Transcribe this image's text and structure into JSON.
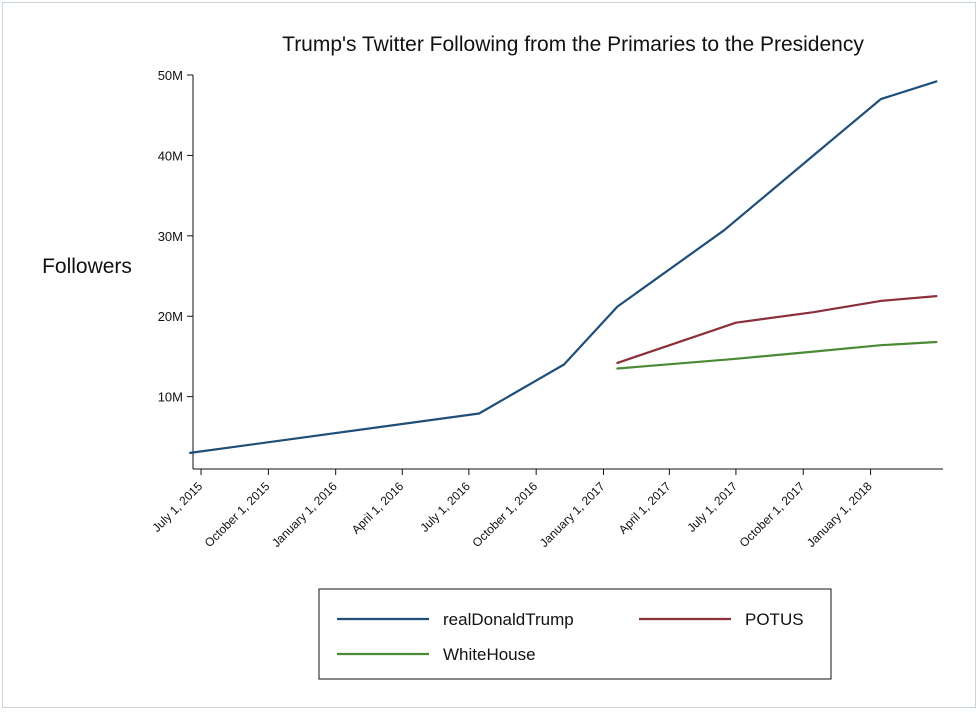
{
  "chart_data": {
    "type": "line",
    "title": "Trump's Twitter Following from the Primaries to the Presidency",
    "xlabel": "",
    "ylabel": "Followers",
    "x_axis_type": "date",
    "x_range": [
      "2015-06-20",
      "2018-04-10"
    ],
    "ylim": [
      1000000,
      50000000
    ],
    "yticks": [
      {
        "value": 10000000,
        "label": "10M"
      },
      {
        "value": 20000000,
        "label": "20M"
      },
      {
        "value": 30000000,
        "label": "30M"
      },
      {
        "value": 40000000,
        "label": "40M"
      },
      {
        "value": 50000000,
        "label": "50M"
      }
    ],
    "xticks": [
      {
        "value": "2015-07-01",
        "label": "July 1, 2015"
      },
      {
        "value": "2015-10-01",
        "label": "October 1, 2015"
      },
      {
        "value": "2016-01-01",
        "label": "January 1, 2016"
      },
      {
        "value": "2016-04-01",
        "label": "April 1, 2016"
      },
      {
        "value": "2016-07-01",
        "label": "July 1, 2016"
      },
      {
        "value": "2016-10-01",
        "label": "October 1, 2016"
      },
      {
        "value": "2017-01-01",
        "label": "January 1, 2017"
      },
      {
        "value": "2017-04-01",
        "label": "April 1, 2017"
      },
      {
        "value": "2017-07-01",
        "label": "July 1, 2017"
      },
      {
        "value": "2017-10-01",
        "label": "October 1, 2017"
      },
      {
        "value": "2018-01-01",
        "label": "January 1, 2018"
      }
    ],
    "series": [
      {
        "name": "realDonaldTrump",
        "color": "#1f4e79",
        "points": [
          [
            "2015-06-16",
            3000000
          ],
          [
            "2016-07-15",
            7900000
          ],
          [
            "2016-11-08",
            14000000
          ],
          [
            "2017-01-20",
            21200000
          ],
          [
            "2017-06-15",
            30700000
          ],
          [
            "2017-10-15",
            40000000
          ],
          [
            "2018-01-15",
            47000000
          ],
          [
            "2018-04-01",
            49200000
          ]
        ]
      },
      {
        "name": "POTUS",
        "color": "#8b2f3a",
        "points": [
          [
            "2017-01-20",
            14200000
          ],
          [
            "2017-07-01",
            19200000
          ],
          [
            "2017-10-15",
            20500000
          ],
          [
            "2018-01-15",
            21900000
          ],
          [
            "2018-04-01",
            22500000
          ]
        ]
      },
      {
        "name": "WhiteHouse",
        "color": "#4a8a35",
        "points": [
          [
            "2017-01-20",
            13500000
          ],
          [
            "2017-07-01",
            14700000
          ],
          [
            "2017-10-15",
            15600000
          ],
          [
            "2018-01-15",
            16400000
          ],
          [
            "2018-04-01",
            16800000
          ]
        ]
      }
    ],
    "legend": {
      "position": "bottom",
      "entries": [
        "realDonaldTrump",
        "POTUS",
        "WhiteHouse"
      ]
    }
  }
}
